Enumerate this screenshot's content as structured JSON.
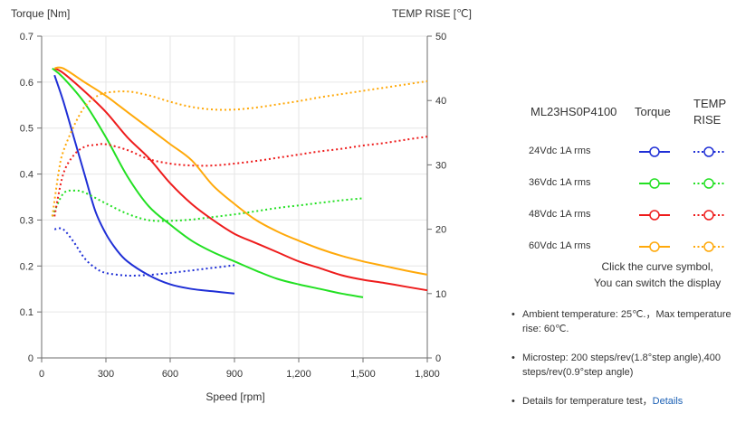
{
  "chart_data": {
    "type": "line",
    "y_left_label": "Torque  [Nm]",
    "y_right_label": "TEMP RISE [℃]",
    "xlabel": "Speed [rpm]",
    "xlim": [
      0,
      1800
    ],
    "ylim_left": [
      0,
      0.7
    ],
    "ylim_right": [
      0,
      50
    ],
    "x_ticks": [
      0,
      300,
      600,
      900,
      1200,
      1500,
      1800
    ],
    "x_tick_labels": [
      "0",
      "300",
      "600",
      "900",
      "1,200",
      "1,500",
      "1,800"
    ],
    "y_left_ticks": [
      0,
      0.1,
      0.2,
      0.3,
      0.4,
      0.5,
      0.6,
      0.7
    ],
    "y_left_tick_labels": [
      "0",
      "0.1",
      "0.2",
      "0.3",
      "0.4",
      "0.5",
      "0.6",
      "0.7"
    ],
    "y_right_ticks": [
      0,
      10,
      20,
      30,
      40,
      50
    ],
    "y_right_tick_labels": [
      "0",
      "10",
      "20",
      "30",
      "40",
      "50"
    ],
    "grid": true,
    "legend_position": "right",
    "series": [
      {
        "name": "24Vdc  1A rms",
        "color": "#1f2fd6",
        "torque": [
          [
            60,
            0.615
          ],
          [
            100,
            0.56
          ],
          [
            150,
            0.48
          ],
          [
            200,
            0.4
          ],
          [
            250,
            0.32
          ],
          [
            300,
            0.27
          ],
          [
            350,
            0.235
          ],
          [
            400,
            0.21
          ],
          [
            500,
            0.18
          ],
          [
            600,
            0.16
          ],
          [
            700,
            0.15
          ],
          [
            800,
            0.145
          ],
          [
            900,
            0.14
          ]
        ],
        "temp": [
          [
            60,
            20
          ],
          [
            100,
            20
          ],
          [
            150,
            18
          ],
          [
            200,
            15.5
          ],
          [
            250,
            14
          ],
          [
            300,
            13.2
          ],
          [
            400,
            12.8
          ],
          [
            500,
            12.9
          ],
          [
            600,
            13.2
          ],
          [
            700,
            13.6
          ],
          [
            800,
            14.0
          ],
          [
            900,
            14.4
          ]
        ]
      },
      {
        "name": "36Vdc  1A rms",
        "color": "#22e022",
        "torque": [
          [
            50,
            0.63
          ],
          [
            100,
            0.61
          ],
          [
            200,
            0.555
          ],
          [
            300,
            0.48
          ],
          [
            400,
            0.395
          ],
          [
            500,
            0.33
          ],
          [
            600,
            0.29
          ],
          [
            700,
            0.255
          ],
          [
            800,
            0.23
          ],
          [
            900,
            0.21
          ],
          [
            1000,
            0.19
          ],
          [
            1100,
            0.172
          ],
          [
            1200,
            0.16
          ],
          [
            1300,
            0.15
          ],
          [
            1400,
            0.14
          ],
          [
            1500,
            0.132
          ]
        ],
        "temp": [
          [
            50,
            22
          ],
          [
            100,
            25.5
          ],
          [
            150,
            26
          ],
          [
            200,
            25.7
          ],
          [
            300,
            24
          ],
          [
            400,
            22.4
          ],
          [
            500,
            21.4
          ],
          [
            600,
            21.3
          ],
          [
            700,
            21.5
          ],
          [
            800,
            21.9
          ],
          [
            900,
            22.3
          ],
          [
            1000,
            22.8
          ],
          [
            1100,
            23.3
          ],
          [
            1200,
            23.7
          ],
          [
            1300,
            24.1
          ],
          [
            1400,
            24.5
          ],
          [
            1500,
            24.8
          ]
        ]
      },
      {
        "name": "48Vdc  1A rms",
        "color": "#ee1c1c",
        "torque": [
          [
            60,
            0.63
          ],
          [
            100,
            0.62
          ],
          [
            200,
            0.58
          ],
          [
            300,
            0.535
          ],
          [
            400,
            0.48
          ],
          [
            500,
            0.435
          ],
          [
            600,
            0.38
          ],
          [
            700,
            0.335
          ],
          [
            800,
            0.3
          ],
          [
            900,
            0.27
          ],
          [
            1000,
            0.25
          ],
          [
            1100,
            0.23
          ],
          [
            1200,
            0.21
          ],
          [
            1300,
            0.195
          ],
          [
            1400,
            0.18
          ],
          [
            1500,
            0.17
          ],
          [
            1600,
            0.163
          ],
          [
            1700,
            0.155
          ],
          [
            1800,
            0.147
          ]
        ],
        "temp": [
          [
            60,
            22
          ],
          [
            100,
            28.5
          ],
          [
            150,
            31.5
          ],
          [
            200,
            32.8
          ],
          [
            250,
            33.1
          ],
          [
            300,
            33.2
          ],
          [
            400,
            32.3
          ],
          [
            500,
            30.9
          ],
          [
            600,
            30.2
          ],
          [
            700,
            29.9
          ],
          [
            800,
            29.9
          ],
          [
            900,
            30.2
          ],
          [
            1000,
            30.6
          ],
          [
            1100,
            31.1
          ],
          [
            1200,
            31.6
          ],
          [
            1300,
            32.1
          ],
          [
            1400,
            32.5
          ],
          [
            1500,
            33
          ],
          [
            1600,
            33.4
          ],
          [
            1700,
            33.9
          ],
          [
            1800,
            34.4
          ]
        ]
      },
      {
        "name": "60Vdc  1A rms",
        "color": "#ffa90a",
        "torque": [
          [
            60,
            0.63
          ],
          [
            100,
            0.63
          ],
          [
            200,
            0.6
          ],
          [
            300,
            0.57
          ],
          [
            400,
            0.535
          ],
          [
            500,
            0.5
          ],
          [
            600,
            0.465
          ],
          [
            700,
            0.43
          ],
          [
            800,
            0.375
          ],
          [
            900,
            0.335
          ],
          [
            1000,
            0.3
          ],
          [
            1100,
            0.275
          ],
          [
            1200,
            0.255
          ],
          [
            1300,
            0.237
          ],
          [
            1400,
            0.222
          ],
          [
            1500,
            0.21
          ],
          [
            1600,
            0.2
          ],
          [
            1700,
            0.19
          ],
          [
            1800,
            0.181
          ]
        ],
        "temp": [
          [
            50,
            22
          ],
          [
            80,
            29
          ],
          [
            100,
            32
          ],
          [
            150,
            36
          ],
          [
            200,
            39
          ],
          [
            250,
            40.5
          ],
          [
            300,
            41.2
          ],
          [
            400,
            41.4
          ],
          [
            500,
            40.8
          ],
          [
            600,
            39.8
          ],
          [
            700,
            39
          ],
          [
            800,
            38.6
          ],
          [
            900,
            38.6
          ],
          [
            1000,
            38.9
          ],
          [
            1100,
            39.4
          ],
          [
            1200,
            39.9
          ],
          [
            1300,
            40.5
          ],
          [
            1400,
            41
          ],
          [
            1500,
            41.5
          ],
          [
            1600,
            42
          ],
          [
            1700,
            42.5
          ],
          [
            1800,
            43
          ]
        ]
      }
    ]
  },
  "legend": {
    "model": "ML23HS0P4100",
    "torque_header": "Torque",
    "temp_header_line1": "TEMP",
    "temp_header_line2": "RISE",
    "rows": [
      "24Vdc  1A rms",
      "36Vdc  1A rms",
      "48Vdc  1A rms",
      "60Vdc  1A rms"
    ],
    "hint_line1": "Click the curve symbol,",
    "hint_line2": "You can switch the display"
  },
  "notes": {
    "ambient": "Ambient temperature: 25℃.，Max temperature rise: 60℃.",
    "microstep": "Microstep: 200 steps/rev(1.8°step angle),400 steps/rev(0.9°step angle)",
    "details_prefix": "Details for temperature test，",
    "details_link": "Details"
  },
  "colors": {
    "axis": "#6e6e6e",
    "grid": "#e6e6e6",
    "text": "#333333",
    "link": "#1a5fb4"
  }
}
